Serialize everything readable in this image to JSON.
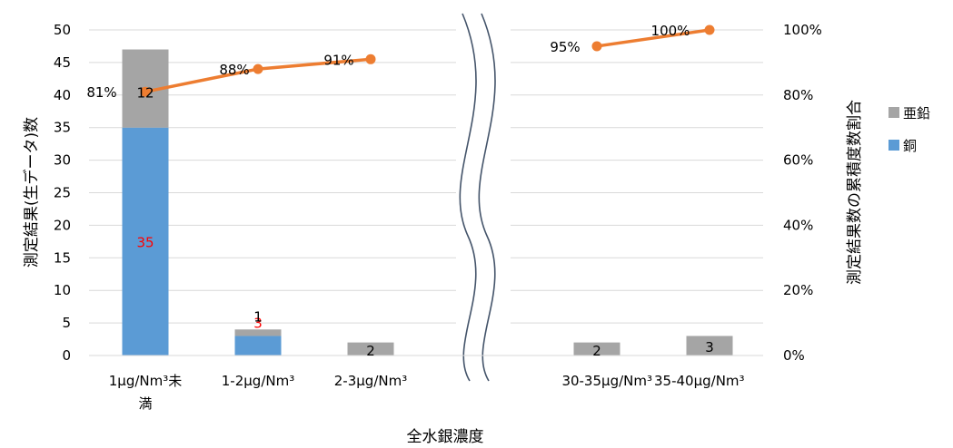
{
  "chart_data": {
    "type": "bar",
    "subtype": "stacked bar with cumulative percentage line, broken x-axis",
    "categories": [
      "1μg/Nm³未満",
      "1-2μg/Nm³",
      "2-3μg/Nm³",
      "30-35μg/Nm³",
      "35-40μg/Nm³"
    ],
    "category_lines": [
      [
        "1μg/Nm³未",
        "満"
      ],
      [
        "1-2μg/Nm³"
      ],
      [
        "2-3μg/Nm³"
      ],
      [
        "30-35μg/Nm³"
      ],
      [
        "35-40μg/Nm³"
      ]
    ],
    "series": [
      {
        "name": "銅",
        "color": "#5b9bd5",
        "values": [
          35,
          3,
          0,
          0,
          0
        ],
        "labels": [
          "35",
          "3",
          "",
          "",
          ""
        ],
        "label_color": "#ff0000"
      },
      {
        "name": "亜鉛",
        "color": "#a5a5a5",
        "values": [
          12,
          1,
          2,
          2,
          3
        ],
        "labels": [
          "12",
          "1",
          "2",
          "2",
          "3"
        ],
        "label_color": "#000000"
      }
    ],
    "cumulative_line": {
      "color": "#ed7d31",
      "values": [
        0.81,
        0.88,
        0.91,
        0.95,
        1.0
      ],
      "labels": [
        "81%",
        "88%",
        "91%",
        "95%",
        "100%"
      ]
    },
    "legend": [
      "亜鉛",
      "銅"
    ],
    "legend_position": "right",
    "xlabel": "全水銀濃度",
    "ylabel": "測定結果(生データ)数",
    "y2label": "測定結果数の累積度数割合",
    "ylim": [
      0,
      50
    ],
    "y_ticks": [
      "0",
      "5",
      "10",
      "15",
      "20",
      "25",
      "30",
      "35",
      "40",
      "45",
      "50"
    ],
    "y2lim": [
      0,
      1
    ],
    "y2_ticks": [
      "0%",
      "20%",
      "40%",
      "60%",
      "80%",
      "100%"
    ],
    "axis_break": "between 2-3μg/Nm³ and 30-35μg/Nm³",
    "grid": true
  }
}
